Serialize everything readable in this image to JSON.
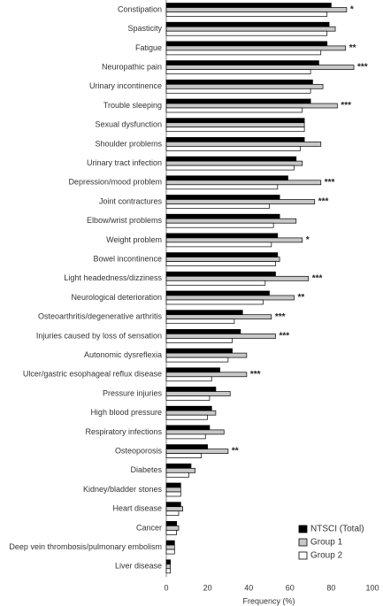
{
  "chart_data": {
    "type": "barh",
    "categories": [
      "Constipation",
      "Spasticity",
      "Fatigue",
      "Neuropathic pain",
      "Urinary incontinence",
      "Trouble sleeping",
      "Sexual dysfunction",
      "Shoulder problems",
      "Urinary tract infection",
      "Depression/mood problem",
      "Joint contractures",
      "Elbow/wrist problems",
      "Weight problem",
      "Bowel incontinence",
      "Light headedness/dizziness",
      "Neurological deterioration",
      "Osteoarthritis/degenerative arthritis",
      "Injuries caused by loss of sensation",
      "Autonomic dysreflexia",
      "Ulcer/gastric esophageal reflux disease",
      "Pressure injuries",
      "High blood pressure",
      "Respiratory infections",
      "Osteoporosis",
      "Diabetes",
      "Kidney/bladder stones",
      "Heart disease",
      "Cancer",
      "Deep vein thrombosis/pulmonary embolism",
      "Liver disease"
    ],
    "series": [
      {
        "name": "NTSCI (Total)",
        "color": "#000000",
        "values": [
          80,
          79,
          78,
          74,
          71,
          70,
          67,
          67,
          63,
          59,
          55,
          55,
          54,
          54,
          53,
          50,
          37,
          36,
          32,
          26,
          24,
          22,
          21,
          20,
          12,
          7,
          7,
          5,
          4,
          2
        ]
      },
      {
        "name": "Group 1",
        "color": "#c8c8c8",
        "values": [
          87.5,
          82,
          87,
          91,
          76,
          83,
          67,
          75,
          66,
          75,
          72,
          63,
          66,
          55,
          69,
          62,
          51,
          53,
          39,
          39,
          31,
          24,
          28,
          30,
          14,
          7,
          8,
          6,
          4,
          2
        ]
      },
      {
        "name": "Group 2",
        "color": "#ffffff",
        "values": [
          78,
          78,
          75,
          70,
          70,
          66,
          67,
          65,
          62,
          54,
          50,
          52,
          51,
          53,
          48,
          47,
          33,
          32,
          30,
          22,
          21,
          20,
          19,
          17,
          11,
          7,
          6,
          5,
          4,
          2
        ]
      }
    ],
    "annotations": [
      "*",
      null,
      "**",
      "***",
      null,
      "***",
      null,
      null,
      null,
      "***",
      "***",
      null,
      "*",
      null,
      "***",
      "**",
      "***",
      "***",
      null,
      "***",
      null,
      null,
      null,
      "**",
      null,
      null,
      null,
      null,
      null,
      null
    ],
    "xlabel": "Frequency (%)",
    "xlim": [
      0,
      100
    ],
    "xticks": [
      0,
      20,
      40,
      60,
      80,
      100
    ],
    "legend": "lower right",
    "grid": false
  }
}
